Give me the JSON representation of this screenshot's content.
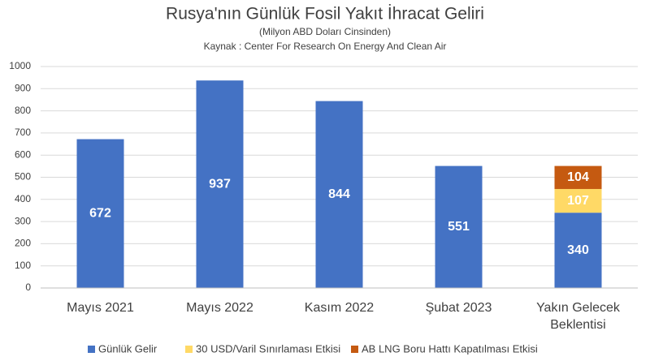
{
  "chart_data": {
    "type": "stacked_bar",
    "title": "Rusya'nın Günlük Fosil Yakıt İhracat Geliri",
    "subtitle": "(Milyon ABD Doları Cinsinden)",
    "source": "Kaynak :  Center For Research On Energy And Clean Air",
    "categories": [
      "Mayıs 2021",
      "Mayıs 2022",
      "Kasım 2022",
      "Şubat 2023",
      "Yakın Gelecek Beklentisi"
    ],
    "series": [
      {
        "name": "Günlük Gelir",
        "color": "#4472c4",
        "values": [
          672,
          937,
          844,
          551,
          340
        ]
      },
      {
        "name": "30 USD/Varil Sınırlaması Etkisi",
        "color": "#ffd966",
        "values": [
          null,
          null,
          null,
          null,
          107
        ]
      },
      {
        "name": "AB LNG Boru Hattı Kapatılması Etkisi",
        "color": "#c55a11",
        "values": [
          null,
          null,
          null,
          null,
          104
        ]
      }
    ],
    "ylim": [
      0,
      1000
    ],
    "yticks": [
      0,
      100,
      200,
      300,
      400,
      500,
      600,
      700,
      800,
      900,
      1000
    ],
    "grid": true,
    "legend": "bottom"
  }
}
